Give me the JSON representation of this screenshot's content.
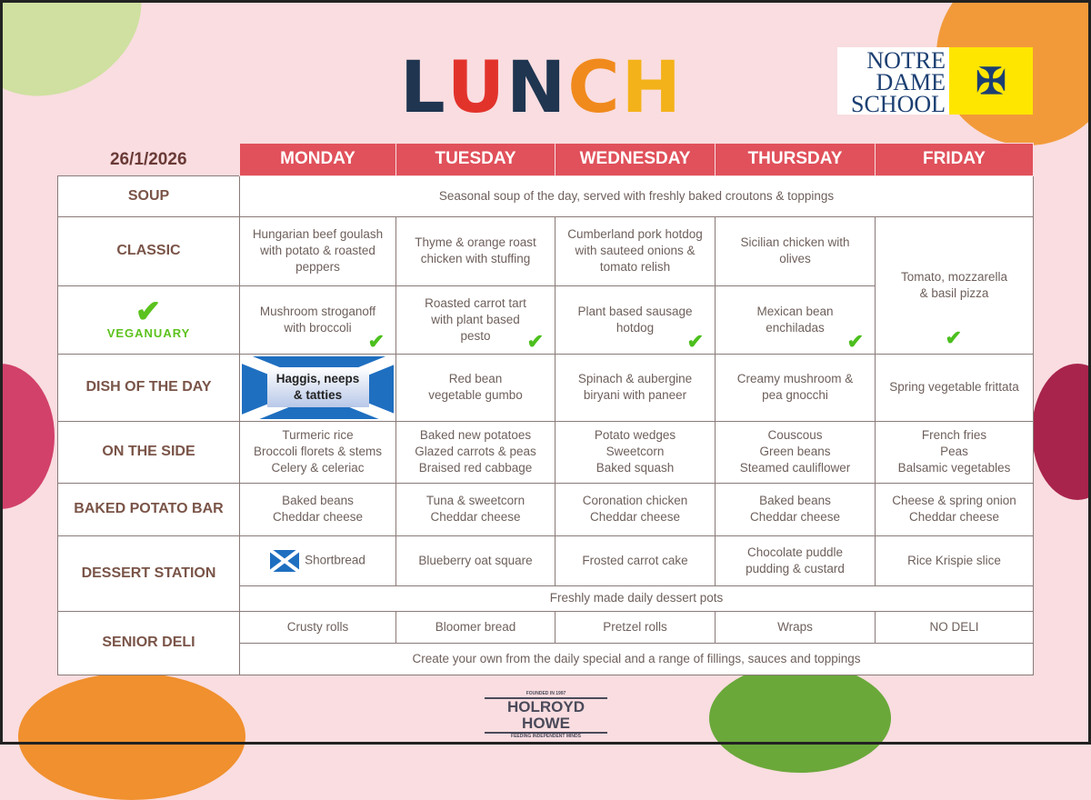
{
  "title": {
    "letters": [
      "L",
      "U",
      "N",
      "C",
      "H"
    ],
    "colors": [
      "#1f3550",
      "#e2332b",
      "#1f3550",
      "#f08a1c",
      "#f4b21a"
    ]
  },
  "logo": {
    "text": "NOTRE DAME SCHOOL",
    "line1": "NOTRE",
    "line2": "DAME",
    "line3": "SCHOOL"
  },
  "date": "26/1/2026",
  "days": [
    "MONDAY",
    "TUESDAY",
    "WEDNESDAY",
    "THURSDAY",
    "FRIDAY"
  ],
  "rows": {
    "soup": {
      "label": "SOUP",
      "text": "Seasonal soup of the day, served with freshly baked croutons & toppings"
    },
    "classic": {
      "label": "CLASSIC",
      "items": [
        "Hungarian beef goulash\nwith potato & roasted\npeppers",
        "Thyme & orange roast\nchicken with stuffing",
        "Cumberland pork hotdog\nwith sauteed onions &\ntomato relish",
        "Sicilian chicken with\nolives"
      ],
      "friday": "Tomato,  mozzarella\n& basil pizza"
    },
    "vegan": {
      "label": "VEGANUARY",
      "items": [
        "Mushroom stroganoff\nwith broccoli",
        "Roasted carrot tart\nwith plant based\npesto",
        "Plant based sausage\nhotdog",
        "Mexican bean\nenchiladas"
      ]
    },
    "dish": {
      "label": "DISH OF THE DAY",
      "items": [
        "Haggis, neeps\n& tatties",
        "Red bean\nvegetable gumbo",
        "Spinach & aubergine\nbiryani with paneer",
        "Creamy mushroom &\npea gnocchi",
        "Spring vegetable frittata"
      ]
    },
    "side": {
      "label": "ON THE SIDE",
      "items": [
        "Turmeric rice\nBroccoli florets & stems\nCelery & celeriac",
        "Baked new potatoes\nGlazed carrots & peas\nBraised red cabbage",
        "Potato wedges\nSweetcorn\nBaked squash",
        "Couscous\nGreen beans\nSteamed cauliflower",
        "French fries\nPeas\nBalsamic vegetables"
      ]
    },
    "potato": {
      "label": "BAKED POTATO BAR",
      "items": [
        "Baked beans\nCheddar cheese",
        "Tuna & sweetcorn\nCheddar cheese",
        "Coronation chicken\nCheddar cheese",
        "Baked beans\nCheddar cheese",
        "Cheese & spring onion\nCheddar cheese"
      ]
    },
    "dessert": {
      "label": "DESSERT STATION",
      "items": [
        "Shortbread",
        "Blueberry oat square",
        "Frosted carrot cake",
        "Chocolate puddle\npudding & custard",
        "Rice Krispie slice"
      ],
      "note": "Freshly made daily dessert pots"
    },
    "deli": {
      "label": "SENIOR DELI",
      "items": [
        "Crusty rolls",
        "Bloomer bread",
        "Pretzel rolls",
        "Wraps",
        "NO DELI"
      ],
      "note": "Create your own from the daily special and a range of fillings, sauces and toppings"
    }
  },
  "footer": {
    "brand": "HOLROYD HOWE",
    "top": "FOUNDED IN 1997",
    "bottom": "FEEDING INDEPENDENT MINDS"
  },
  "icons": {
    "vegan_mark": "green-check-icon",
    "flag": "scotland-flag-icon"
  }
}
